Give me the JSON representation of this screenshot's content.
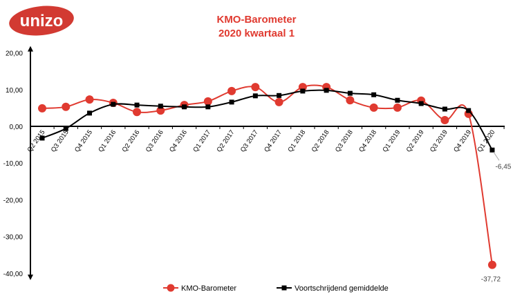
{
  "logo_text": "unizo",
  "colors": {
    "kmo": "#e03a30",
    "avg": "#000000",
    "title": "#e03a30",
    "logo": "#d23a32"
  },
  "chart_data": {
    "type": "line",
    "title": "KMO-Barometer",
    "subtitle": "2020 kwartaal 1",
    "xlabel": "",
    "ylabel": "",
    "ylim": [
      -40,
      20
    ],
    "yticks": [
      "20,00",
      "10,00",
      "0,00",
      "-10,00",
      "-20,00",
      "-30,00",
      "-40,00"
    ],
    "ytick_values": [
      20,
      10,
      0,
      -10,
      -20,
      -30,
      -40
    ],
    "grid": false,
    "legend": "bottom",
    "categories": [
      "Q2 2015",
      "Q3 2015",
      "Q4 2015",
      "Q1 2016",
      "Q2 2016",
      "Q3 2016",
      "Q4 2016",
      "Q1 2017",
      "Q2 2017",
      "Q3 2017",
      "Q4 2017",
      "Q1 2018",
      "Q2 2018",
      "Q3 2018",
      "Q4 2018",
      "Q1 2019",
      "Q2 2019",
      "Q3 2019",
      "Q4 2019",
      "Q1 2020"
    ],
    "series": [
      {
        "name": "KMO-Barometer",
        "marker": "circle",
        "values": [
          4.9,
          5.3,
          7.3,
          6.4,
          3.9,
          4.3,
          5.8,
          6.8,
          9.6,
          10.7,
          6.6,
          10.7,
          10.7,
          7.1,
          5.1,
          5.1,
          7.0,
          1.7,
          3.4,
          -37.72
        ],
        "last_label": "-37,72"
      },
      {
        "name": "Voortschrijdend gemiddelde",
        "marker": "square",
        "values": [
          -3.2,
          -0.6,
          3.6,
          6.0,
          5.8,
          5.5,
          5.3,
          5.3,
          6.6,
          8.3,
          8.4,
          9.6,
          9.8,
          9.0,
          8.6,
          7.1,
          6.2,
          4.7,
          4.3,
          -6.45
        ],
        "last_label": "-6,45"
      }
    ]
  }
}
